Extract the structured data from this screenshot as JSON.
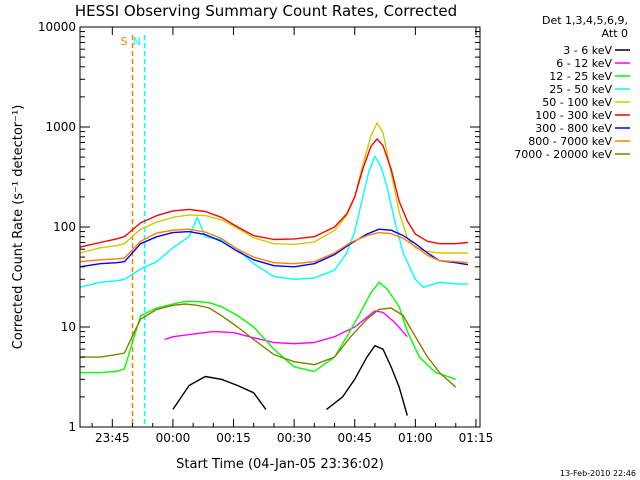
{
  "chart_data": {
    "type": "line",
    "title": "HESSI Observing Summary Count Rates, Corrected",
    "xlabel": "Start Time (04-Jan-05 23:36:02)",
    "ylabel": "Corrected Count Rate (s⁻¹ detector⁻¹)",
    "yscale": "log",
    "ylim": [
      1,
      10000
    ],
    "xlim_minutes": [
      -23,
      76
    ],
    "x_ticks": [
      {
        "m": -15,
        "label": "23:45"
      },
      {
        "m": 0,
        "label": "00:00"
      },
      {
        "m": 15,
        "label": "00:15"
      },
      {
        "m": 30,
        "label": "00:30"
      },
      {
        "m": 45,
        "label": "00:45"
      },
      {
        "m": 60,
        "label": "01:00"
      },
      {
        "m": 75,
        "label": "01:15"
      }
    ],
    "y_ticks": [
      {
        "v": 1,
        "label": "1"
      },
      {
        "v": 10,
        "label": "10"
      },
      {
        "v": 100,
        "label": "100"
      },
      {
        "v": 1000,
        "label": "1000"
      },
      {
        "v": 10000,
        "label": "10000"
      }
    ],
    "legend_header": [
      "Det 1,3,4,5,6,9,",
      "Att 0"
    ],
    "legend_position": "right",
    "timestamp": "13-Feb-2010 22:46",
    "annotations": [
      {
        "label": "S",
        "color": "#ff7f00",
        "x": -10
      },
      {
        "label": "N",
        "color": "#00ffff",
        "x": -7
      }
    ],
    "series": [
      {
        "name": "3 - 6 keV",
        "color": "#000000",
        "x": [
          0,
          4,
          8,
          12,
          16,
          20,
          23,
          30,
          35,
          38,
          42,
          45,
          48,
          50,
          52,
          54,
          56,
          58
        ],
        "y": [
          1.5,
          2.6,
          3.2,
          3.0,
          2.6,
          2.2,
          1.5,
          null,
          null,
          1.5,
          2.0,
          3.0,
          5.0,
          6.5,
          6.0,
          4.0,
          2.5,
          1.3
        ]
      },
      {
        "name": "6 - 12 keV",
        "color": "#ff00ff",
        "x": [
          -2,
          0,
          5,
          10,
          15,
          20,
          25,
          30,
          35,
          40,
          45,
          48,
          50,
          52,
          55,
          58
        ],
        "y": [
          7.5,
          8.0,
          8.5,
          9.0,
          8.8,
          7.8,
          7.0,
          6.8,
          7.0,
          8.0,
          10.0,
          12.5,
          14.5,
          14.0,
          11.0,
          8.0
        ]
      },
      {
        "name": "12 - 25 keV",
        "color": "#00ff00",
        "x": [
          -23,
          -18,
          -14,
          -12,
          -8,
          -4,
          0,
          3,
          6,
          9,
          12,
          16,
          20,
          25,
          30,
          35,
          40,
          43,
          46,
          49,
          51,
          53,
          56,
          58,
          61,
          65,
          68,
          70
        ],
        "y": [
          3.5,
          3.5,
          3.6,
          3.8,
          13,
          15.5,
          17,
          18,
          18,
          17.5,
          16,
          13,
          10,
          6,
          4,
          3.6,
          5,
          8,
          13,
          22,
          28,
          24,
          16,
          9,
          5,
          3.5,
          3.2,
          3.0
        ]
      },
      {
        "name": "25 - 50 keV",
        "color": "#00ffff",
        "x": [
          -23,
          -18,
          -14,
          -12,
          -8,
          -4,
          0,
          4,
          6,
          8,
          12,
          16,
          20,
          25,
          30,
          35,
          40,
          43,
          45,
          47,
          48.5,
          50,
          51.5,
          53,
          55,
          57,
          60,
          62,
          66,
          70,
          73
        ],
        "y": [
          25,
          28,
          29,
          30,
          38,
          45,
          62,
          80,
          125,
          80,
          75,
          60,
          43,
          32,
          30,
          31,
          37,
          55,
          90,
          200,
          360,
          510,
          400,
          250,
          110,
          55,
          30,
          25,
          28,
          27,
          27
        ]
      },
      {
        "name": "50 - 100 keV",
        "color": "#cccc00",
        "x": [
          -23,
          -18,
          -14,
          -12,
          -8,
          -4,
          0,
          4,
          8,
          12,
          16,
          20,
          25,
          30,
          35,
          40,
          43,
          45,
          47,
          49,
          50.5,
          52,
          54,
          56,
          58,
          60,
          63,
          66,
          70,
          73
        ],
        "y": [
          55,
          62,
          65,
          68,
          95,
          112,
          125,
          132,
          130,
          118,
          97,
          78,
          68,
          67,
          71,
          92,
          130,
          200,
          420,
          810,
          1100,
          880,
          350,
          140,
          78,
          62,
          57,
          55,
          55,
          55
        ]
      },
      {
        "name": "100 - 300 keV",
        "color": "#ff0000",
        "x": [
          -23,
          -18,
          -14,
          -12,
          -8,
          -4,
          0,
          4,
          8,
          12,
          16,
          20,
          25,
          30,
          35,
          40,
          43,
          45,
          47,
          49,
          50.5,
          52,
          54,
          56,
          58,
          60,
          63,
          66,
          70,
          73
        ],
        "y": [
          63,
          70,
          76,
          80,
          110,
          130,
          145,
          150,
          143,
          125,
          100,
          82,
          75,
          76,
          80,
          100,
          135,
          200,
          380,
          640,
          760,
          650,
          380,
          180,
          115,
          85,
          72,
          68,
          68,
          70
        ]
      },
      {
        "name": "300 - 800 keV",
        "color": "#0000ff",
        "x": [
          -23,
          -18,
          -14,
          -12,
          -8,
          -4,
          0,
          4,
          8,
          12,
          16,
          20,
          25,
          30,
          35,
          40,
          44,
          48,
          51,
          54,
          57,
          60,
          63,
          66,
          70,
          73
        ],
        "y": [
          40,
          43,
          44,
          45,
          68,
          80,
          88,
          90,
          84,
          72,
          57,
          47,
          41,
          40,
          43,
          53,
          68,
          85,
          95,
          93,
          82,
          68,
          55,
          46,
          44,
          42
        ]
      },
      {
        "name": "800 - 7000 keV",
        "color": "#ff7f00",
        "x": [
          -23,
          -18,
          -14,
          -12,
          -8,
          -4,
          0,
          4,
          8,
          12,
          16,
          20,
          25,
          30,
          35,
          40,
          44,
          48,
          51,
          54,
          57,
          60,
          63,
          66,
          70,
          73
        ],
        "y": [
          45,
          47,
          48,
          49,
          72,
          87,
          93,
          95,
          89,
          77,
          60,
          50,
          44,
          43,
          45,
          55,
          70,
          82,
          88,
          86,
          77,
          64,
          52,
          46,
          45,
          44
        ]
      },
      {
        "name": "7000 - 20000 keV",
        "color": "#808000",
        "x": [
          -23,
          -18,
          -14,
          -12,
          -8,
          -4,
          0,
          3,
          6,
          9,
          12,
          16,
          20,
          25,
          30,
          35,
          40,
          44,
          48,
          51,
          54,
          57,
          60,
          63,
          66,
          70
        ],
        "y": [
          5,
          5,
          5.3,
          5.5,
          12,
          15,
          16.5,
          17,
          16.5,
          15.5,
          13,
          10,
          7.5,
          5.3,
          4.5,
          4.2,
          5,
          8,
          12,
          15,
          15.5,
          13,
          8,
          5,
          3.5,
          2.5
        ]
      }
    ]
  }
}
